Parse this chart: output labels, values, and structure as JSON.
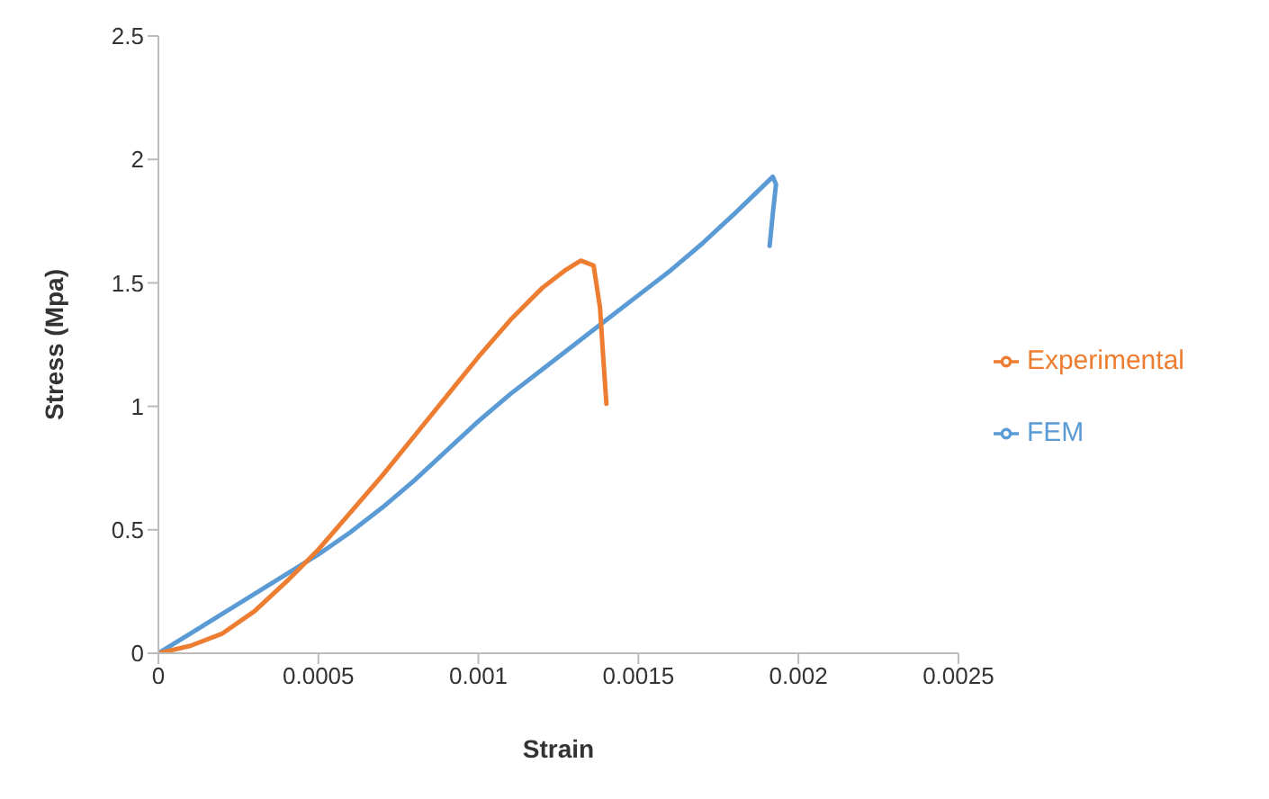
{
  "chart_data": {
    "type": "line",
    "xlabel": "Strain",
    "ylabel": "Stress (Mpa)",
    "xlim": [
      0,
      0.0025
    ],
    "xticks": [
      0,
      0.0005,
      0.001,
      0.0015,
      0.002,
      0.0025
    ],
    "ylim": [
      0,
      2.5
    ],
    "yticks": [
      0,
      0.5,
      1,
      1.5,
      2,
      2.5
    ],
    "grid": false,
    "legend": "right",
    "marker": "none",
    "line_style": "solid",
    "series": [
      {
        "name": "FEM",
        "color": "#5b9bd5",
        "x": [
          0,
          0.0001,
          0.0002,
          0.0003,
          0.0004,
          0.0005,
          0.0006,
          0.0007,
          0.0008,
          0.0009,
          0.001,
          0.0011,
          0.0012,
          0.0013,
          0.0014,
          0.0015,
          0.0016,
          0.0017,
          0.0018,
          0.00188,
          0.00192,
          0.00193,
          0.00192,
          0.00191
        ],
        "values": [
          0,
          0.08,
          0.16,
          0.24,
          0.32,
          0.4,
          0.49,
          0.59,
          0.7,
          0.82,
          0.94,
          1.05,
          1.15,
          1.25,
          1.35,
          1.45,
          1.55,
          1.66,
          1.78,
          1.88,
          1.93,
          1.9,
          1.78,
          1.65
        ]
      },
      {
        "name": "Experimental",
        "color": "#ed7d31",
        "x": [
          0,
          0.0001,
          0.0002,
          0.0003,
          0.0004,
          0.0005,
          0.0006,
          0.0007,
          0.0008,
          0.0009,
          0.001,
          0.0011,
          0.0012,
          0.00127,
          0.00132,
          0.00136,
          0.00138,
          0.00139,
          0.0014
        ],
        "values": [
          0,
          0.03,
          0.08,
          0.17,
          0.29,
          0.42,
          0.57,
          0.72,
          0.88,
          1.04,
          1.2,
          1.35,
          1.48,
          1.55,
          1.59,
          1.57,
          1.4,
          1.2,
          1.01
        ]
      }
    ]
  }
}
